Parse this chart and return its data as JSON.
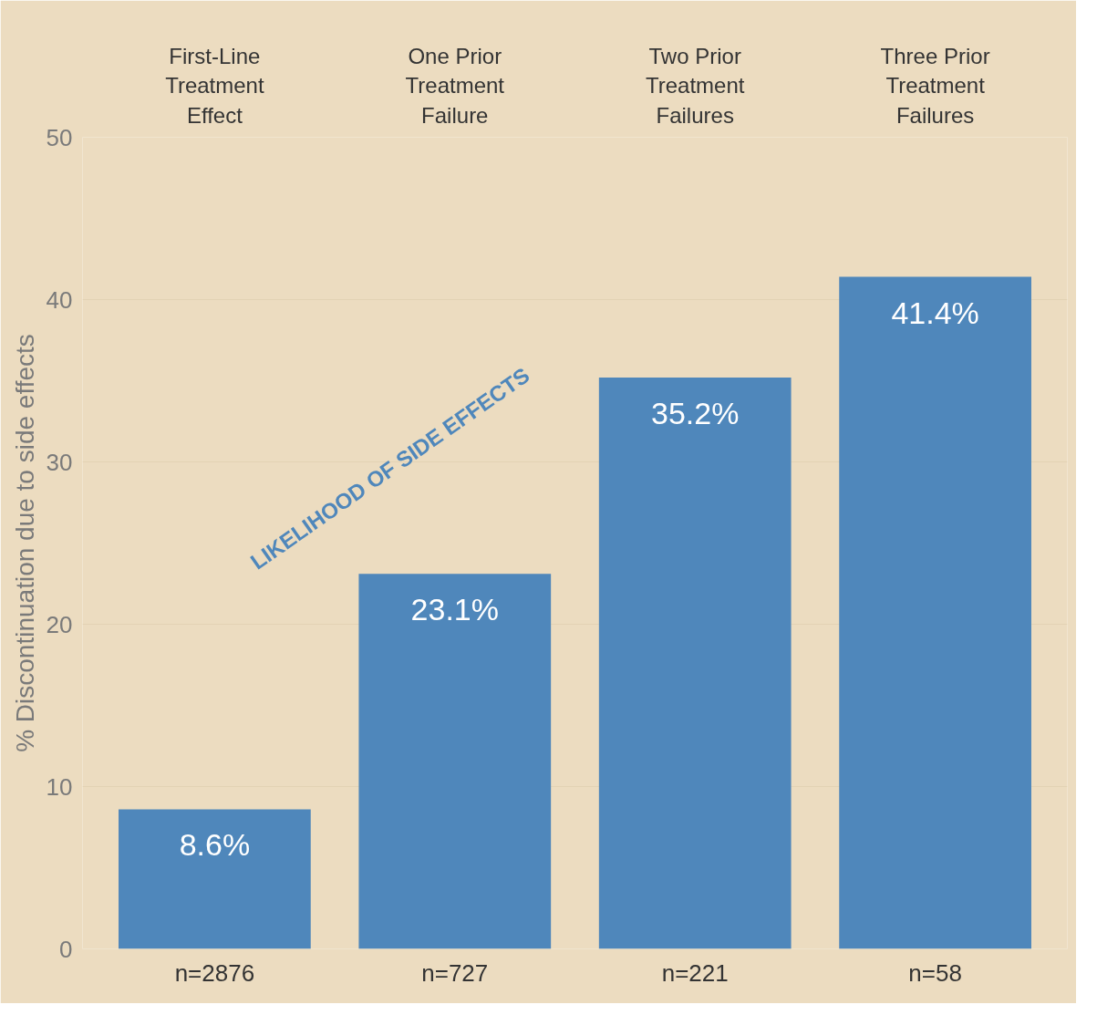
{
  "chart_data": {
    "type": "bar",
    "ylabel": "% Discontinuation due to side effects",
    "categories": [
      "First-Line Treatment Effect",
      "One Prior Treatment Failure",
      "Two Prior Treatment Failures",
      "Three Prior Treatment Failures"
    ],
    "values": [
      8.6,
      23.1,
      35.2,
      41.4
    ],
    "value_labels": [
      "8.6%",
      "23.1%",
      "35.2%",
      "41.4%"
    ],
    "color": "#4f87bb",
    "ylim": [
      0,
      50
    ],
    "yticks": [
      0,
      10,
      20,
      30,
      40,
      50
    ],
    "grid": "y",
    "annotations": [
      "n=2876",
      "n=727",
      "n=221",
      "n=58",
      "LIKELIHOOD OF SIDE EFFECTS"
    ]
  }
}
